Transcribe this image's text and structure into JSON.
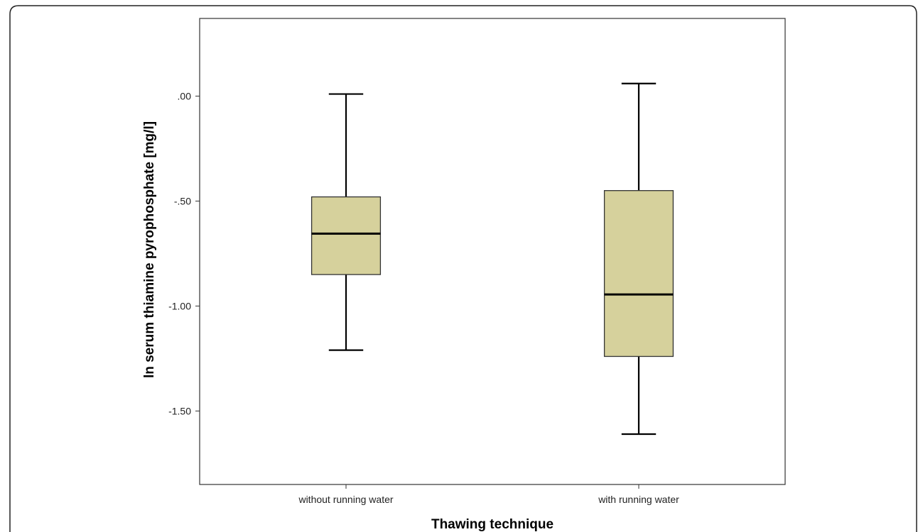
{
  "chart_data": {
    "type": "box",
    "title": "",
    "xlabel": "Thawing technique",
    "ylabel": "ln serum thiamine pyrophosphate [mg/l]",
    "ylim": [
      -1.85,
      0.37
    ],
    "yticks": [
      0.0,
      -0.5,
      -1.0,
      -1.5
    ],
    "ytick_labels": [
      ".00",
      "-.50",
      "-1.00",
      "-1.50"
    ],
    "grid": false,
    "categories": [
      "without running water",
      "with running water"
    ],
    "boxes": [
      {
        "category": "without running water",
        "whisker_low": -1.21,
        "q1": -0.85,
        "median": -0.655,
        "q3": -0.48,
        "whisker_high": 0.01
      },
      {
        "category": "with running water",
        "whisker_low": -1.61,
        "q1": -1.24,
        "median": -0.945,
        "q3": -0.45,
        "whisker_high": 0.06
      }
    ],
    "box_color": "#d6d19c",
    "line_color": "#000000"
  }
}
